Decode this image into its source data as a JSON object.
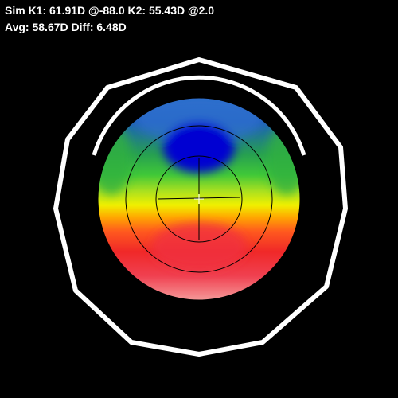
{
  "header": {
    "line1": "Sim K1: 61.91D @-88.0 K2: 55.43D @2.0",
    "line2": "Avg: 58.67D Diff: 6.48D"
  }
}
